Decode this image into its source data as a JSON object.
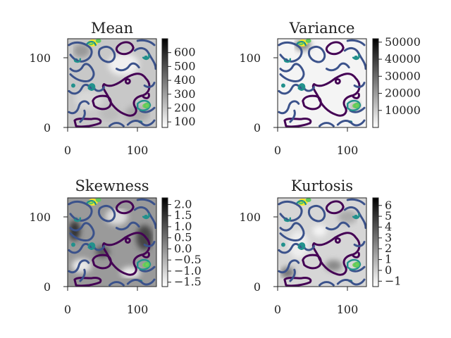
{
  "chart_data": [
    {
      "type": "heatmap",
      "title": "Mean",
      "x_ticks": [
        "0",
        "100"
      ],
      "y_ticks": [
        "0",
        "100"
      ],
      "xlim": [
        0,
        127
      ],
      "ylim": [
        0,
        127
      ],
      "colorbar": {
        "cmap": "gray_r",
        "ticks": [
          "100",
          "200",
          "300",
          "400",
          "500",
          "600"
        ],
        "range": [
          60,
          700
        ]
      },
      "overlay": "contour lines (viridis)"
    },
    {
      "type": "heatmap",
      "title": "Variance",
      "x_ticks": [
        "0",
        "100"
      ],
      "y_ticks": [
        "0",
        "100"
      ],
      "xlim": [
        0,
        127
      ],
      "ylim": [
        0,
        127
      ],
      "colorbar": {
        "cmap": "gray_r",
        "ticks": [
          "10000",
          "20000",
          "30000",
          "40000",
          "50000"
        ],
        "range": [
          0,
          52000
        ]
      },
      "overlay": "contour lines (viridis)"
    },
    {
      "type": "heatmap",
      "title": "Skewness",
      "x_ticks": [
        "0",
        "100"
      ],
      "y_ticks": [
        "0",
        "100"
      ],
      "xlim": [
        0,
        127
      ],
      "ylim": [
        0,
        127
      ],
      "colorbar": {
        "cmap": "gray_r",
        "ticks": [
          "−1.5",
          "−1.0",
          "−0.5",
          "0.0",
          "0.5",
          "1.0",
          "1.5",
          "2.0"
        ],
        "range": [
          -1.7,
          2.3
        ]
      },
      "overlay": "contour lines (viridis)"
    },
    {
      "type": "heatmap",
      "title": "Kurtosis",
      "x_ticks": [
        "0",
        "100"
      ],
      "y_ticks": [
        "0",
        "100"
      ],
      "xlim": [
        0,
        127
      ],
      "ylim": [
        0,
        127
      ],
      "colorbar": {
        "cmap": "gray_r",
        "ticks": [
          "−1",
          "0",
          "1",
          "2",
          "3",
          "4",
          "5",
          "6"
        ],
        "range": [
          -1.5,
          6.7
        ]
      },
      "overlay": "contour lines (viridis)"
    }
  ],
  "colors": {
    "contour_dark": "#440154",
    "contour_mid": "#3b528b",
    "contour_teal": "#21918c",
    "contour_green": "#5ec962",
    "contour_yellow": "#fde725"
  }
}
